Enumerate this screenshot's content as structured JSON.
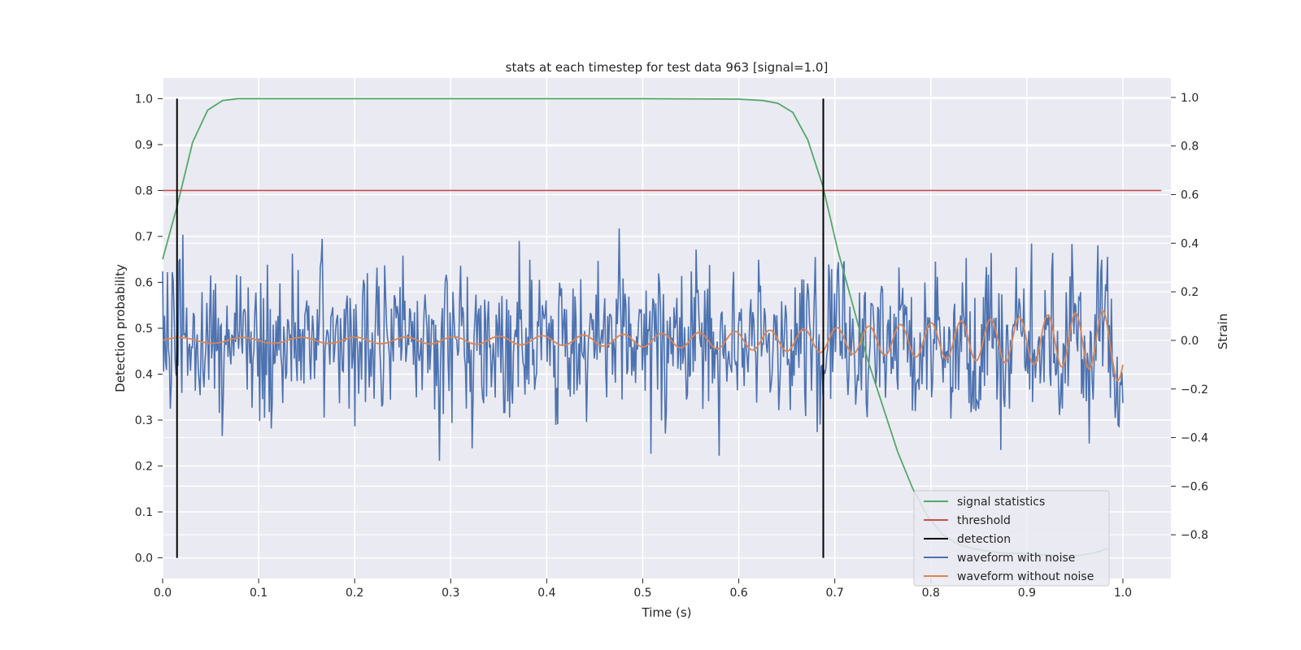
{
  "chart_data": {
    "type": "line",
    "title": "stats at each timestep for test data 963 [signal=1.0]",
    "xlabel": "Time (s)",
    "ylabel": "Detection probability",
    "y2label": "Strain",
    "xlim": [
      0.0,
      1.05
    ],
    "ylim": [
      -0.045,
      1.045
    ],
    "y2lim": [
      -0.98,
      1.08
    ],
    "xticks": [
      "0.0",
      "0.1",
      "0.2",
      "0.3",
      "0.4",
      "0.5",
      "0.6",
      "0.7",
      "0.8",
      "0.9",
      "1.0"
    ],
    "yticks": [
      "0.0",
      "0.1",
      "0.2",
      "0.3",
      "0.4",
      "0.5",
      "0.6",
      "0.7",
      "0.8",
      "0.9",
      "1.0"
    ],
    "y2ticks": [
      "−0.8",
      "−0.6",
      "−0.4",
      "−0.2",
      "0.0",
      "0.2",
      "0.4",
      "0.6",
      "0.8",
      "1.0"
    ],
    "grid": true,
    "legend_position": "lower-right",
    "colors": {
      "signal_statistics": "#55a868",
      "threshold": "#c44e52",
      "detection": "#000000",
      "waveform_with_noise": "#4c72b0",
      "waveform_without_noise": "#dd8452",
      "plot_background": "#eaeaf2",
      "grid": "#ffffff"
    },
    "legend": [
      {
        "key": "signal_statistics",
        "label": "signal statistics"
      },
      {
        "key": "threshold",
        "label": "threshold"
      },
      {
        "key": "detection",
        "label": "detection"
      },
      {
        "key": "waveform_with_noise",
        "label": "waveform with noise"
      },
      {
        "key": "waveform_without_noise",
        "label": "waveform without noise"
      }
    ],
    "signal_statistics": {
      "x": [
        0.0,
        0.0156,
        0.0312,
        0.0469,
        0.0625,
        0.0781,
        0.1,
        0.2,
        0.3,
        0.4,
        0.5,
        0.6,
        0.625,
        0.6406,
        0.6563,
        0.6719,
        0.6875,
        0.7031,
        0.7188,
        0.7344,
        0.75,
        0.7656,
        0.7813,
        0.7969,
        0.8125,
        0.8281,
        0.8438,
        0.8594,
        0.875,
        0.8906,
        0.9063,
        0.9219,
        0.9375,
        0.9531,
        0.9688,
        0.9844
      ],
      "y": [
        0.65,
        0.77,
        0.905,
        0.975,
        0.996,
        1.0,
        1.0,
        1.0,
        1.0,
        1.0,
        1.0,
        0.999,
        0.996,
        0.99,
        0.97,
        0.91,
        0.81,
        0.67,
        0.55,
        0.43,
        0.33,
        0.23,
        0.15,
        0.09,
        0.05,
        0.03,
        0.02,
        0.015,
        0.01,
        0.01,
        0.008,
        0.006,
        0.005,
        0.005,
        0.01,
        0.02
      ]
    },
    "threshold": {
      "x": [
        0.0,
        1.04
      ],
      "y": 0.8
    },
    "detections": [
      {
        "x": 0.015,
        "y0": 0.0,
        "y1": 1.0
      },
      {
        "x": 0.688,
        "y0": 0.0,
        "y1": 1.0
      }
    ],
    "waveform_without_noise": {
      "x_start": 0.0,
      "x_end": 1.0,
      "description_params": {
        "f0": 14,
        "f1": 36,
        "amp0": 0.012,
        "amp1": 0.13
      }
    },
    "waveform_with_noise": {
      "x_start": 0.0,
      "x_end": 1.0,
      "n_points": 1000,
      "noise_std": 0.22,
      "y2_min": -0.9,
      "y2_max": 1.0
    }
  }
}
